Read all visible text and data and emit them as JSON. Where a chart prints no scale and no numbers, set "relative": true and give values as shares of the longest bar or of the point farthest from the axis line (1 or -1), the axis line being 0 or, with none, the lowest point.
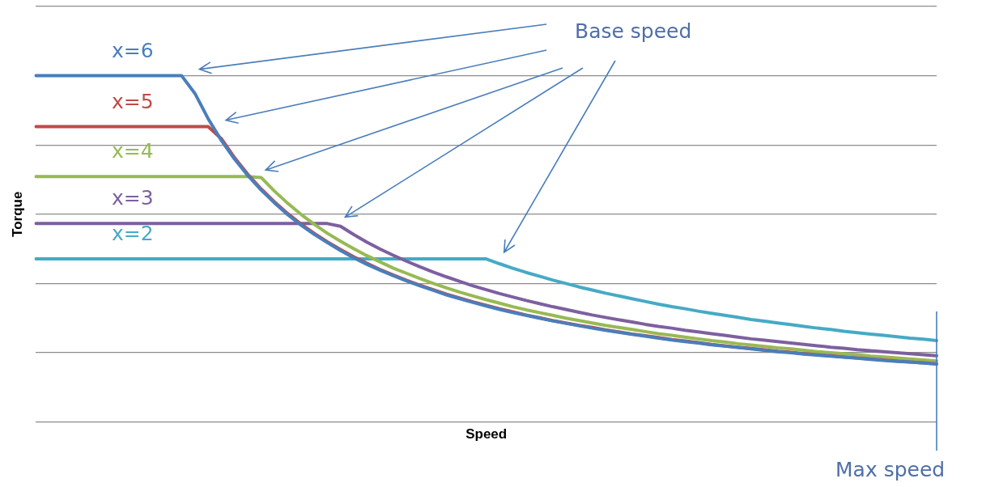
{
  "chart_data": {
    "type": "line",
    "xlabel": "Speed",
    "ylabel": "Torque",
    "relative": true,
    "grid": "y",
    "legend": false,
    "marker": "none",
    "line_style": "solid",
    "categories": [
      null,
      null,
      null,
      null,
      null,
      null,
      null,
      null,
      null,
      null,
      null,
      null,
      null,
      null,
      null,
      null,
      null,
      null,
      null,
      null,
      null,
      null,
      null,
      null,
      null,
      null,
      null,
      null,
      null,
      null,
      null,
      null,
      null,
      null,
      null,
      null,
      null,
      null,
      null,
      null,
      null,
      null,
      null,
      null,
      null,
      null,
      null,
      null,
      null,
      null,
      null,
      null,
      null,
      null,
      null,
      null,
      null,
      null,
      null,
      null,
      null,
      null,
      null,
      null,
      null,
      null,
      null,
      null,
      null
    ],
    "series": [
      {
        "name": "x=6",
        "color": "#4a7ebb",
        "values": [
          1,
          1,
          1,
          1,
          1,
          1,
          1,
          1,
          1,
          1,
          1,
          1,
          0.949,
          0.876,
          0.813,
          0.759,
          0.712,
          0.67,
          0.633,
          0.599,
          0.569,
          0.542,
          0.518,
          0.495,
          0.474,
          0.455,
          0.438,
          0.422,
          0.407,
          0.393,
          0.38,
          0.367,
          0.356,
          0.345,
          0.335,
          0.325,
          0.316,
          0.308,
          0.3,
          0.292,
          0.285,
          0.278,
          0.271,
          0.265,
          0.259,
          0.253,
          0.248,
          0.242,
          0.237,
          0.232,
          0.228,
          0.223,
          0.219,
          0.215,
          0.211,
          0.207,
          0.203,
          0.2,
          0.196,
          0.193,
          0.19,
          0.187,
          0.184,
          0.181,
          0.178,
          0.175,
          0.173,
          0.17,
          0.167
        ]
      },
      {
        "name": "x=5",
        "color": "#be4b48",
        "values": [
          0.853,
          0.853,
          0.853,
          0.853,
          0.853,
          0.853,
          0.853,
          0.853,
          0.853,
          0.853,
          0.853,
          0.853,
          0.853,
          0.853,
          0.818,
          0.763,
          0.715,
          0.673,
          0.636,
          0.602,
          0.572,
          0.545,
          0.52,
          0.498,
          0.477,
          0.458,
          0.44,
          0.424,
          0.409,
          0.395,
          0.382,
          0.369,
          0.358,
          0.347,
          0.337,
          0.327,
          0.318,
          0.309,
          0.301,
          0.293,
          0.286,
          0.279,
          0.273,
          0.266,
          0.26,
          0.254,
          0.249,
          0.244,
          0.238,
          0.234,
          0.229,
          0.224,
          0.22,
          0.216,
          0.212,
          0.208,
          0.204,
          0.201,
          0.197,
          0.194,
          0.191,
          0.188,
          0.185,
          0.182,
          0.179,
          0.176,
          0.173,
          0.171,
          0.168
        ]
      },
      {
        "name": "x=4",
        "color": "#98b954",
        "values": [
          0.709,
          0.709,
          0.709,
          0.709,
          0.709,
          0.709,
          0.709,
          0.709,
          0.709,
          0.709,
          0.709,
          0.709,
          0.709,
          0.709,
          0.709,
          0.709,
          0.709,
          0.706,
          0.667,
          0.632,
          0.6,
          0.571,
          0.545,
          0.522,
          0.5,
          0.48,
          0.462,
          0.444,
          0.429,
          0.414,
          0.4,
          0.387,
          0.375,
          0.364,
          0.353,
          0.343,
          0.333,
          0.324,
          0.316,
          0.308,
          0.3,
          0.293,
          0.286,
          0.279,
          0.273,
          0.267,
          0.261,
          0.255,
          0.25,
          0.245,
          0.24,
          0.235,
          0.231,
          0.226,
          0.222,
          0.218,
          0.214,
          0.211,
          0.207,
          0.203,
          0.2,
          0.197,
          0.194,
          0.19,
          0.188,
          0.185,
          0.182,
          0.179,
          0.176
        ]
      },
      {
        "name": "x=3",
        "color": "#7d60a0",
        "values": [
          0.573,
          0.573,
          0.573,
          0.573,
          0.573,
          0.573,
          0.573,
          0.573,
          0.573,
          0.573,
          0.573,
          0.573,
          0.573,
          0.573,
          0.573,
          0.573,
          0.573,
          0.573,
          0.573,
          0.573,
          0.573,
          0.573,
          0.573,
          0.565,
          0.541,
          0.519,
          0.499,
          0.481,
          0.464,
          0.448,
          0.433,
          0.419,
          0.406,
          0.393,
          0.382,
          0.371,
          0.361,
          0.351,
          0.342,
          0.333,
          0.325,
          0.317,
          0.309,
          0.302,
          0.295,
          0.289,
          0.282,
          0.276,
          0.271,
          0.265,
          0.26,
          0.255,
          0.25,
          0.245,
          0.24,
          0.236,
          0.232,
          0.228,
          0.224,
          0.22,
          0.216,
          0.213,
          0.209,
          0.206,
          0.203,
          0.2,
          0.197,
          0.194,
          0.191
        ]
      },
      {
        "name": "x=2",
        "color": "#46aac5",
        "values": [
          0.471,
          0.471,
          0.471,
          0.471,
          0.471,
          0.471,
          0.471,
          0.471,
          0.471,
          0.471,
          0.471,
          0.471,
          0.471,
          0.471,
          0.471,
          0.471,
          0.471,
          0.471,
          0.471,
          0.471,
          0.471,
          0.471,
          0.471,
          0.471,
          0.471,
          0.471,
          0.471,
          0.471,
          0.471,
          0.471,
          0.471,
          0.471,
          0.471,
          0.471,
          0.471,
          0.457,
          0.444,
          0.432,
          0.421,
          0.41,
          0.4,
          0.39,
          0.381,
          0.372,
          0.364,
          0.356,
          0.348,
          0.34,
          0.333,
          0.327,
          0.32,
          0.314,
          0.308,
          0.302,
          0.296,
          0.291,
          0.286,
          0.281,
          0.276,
          0.271,
          0.267,
          0.262,
          0.258,
          0.254,
          0.25,
          0.246,
          0.242,
          0.239,
          0.235
        ]
      }
    ],
    "annotations": [
      "Base speed",
      "Max speed"
    ]
  }
}
